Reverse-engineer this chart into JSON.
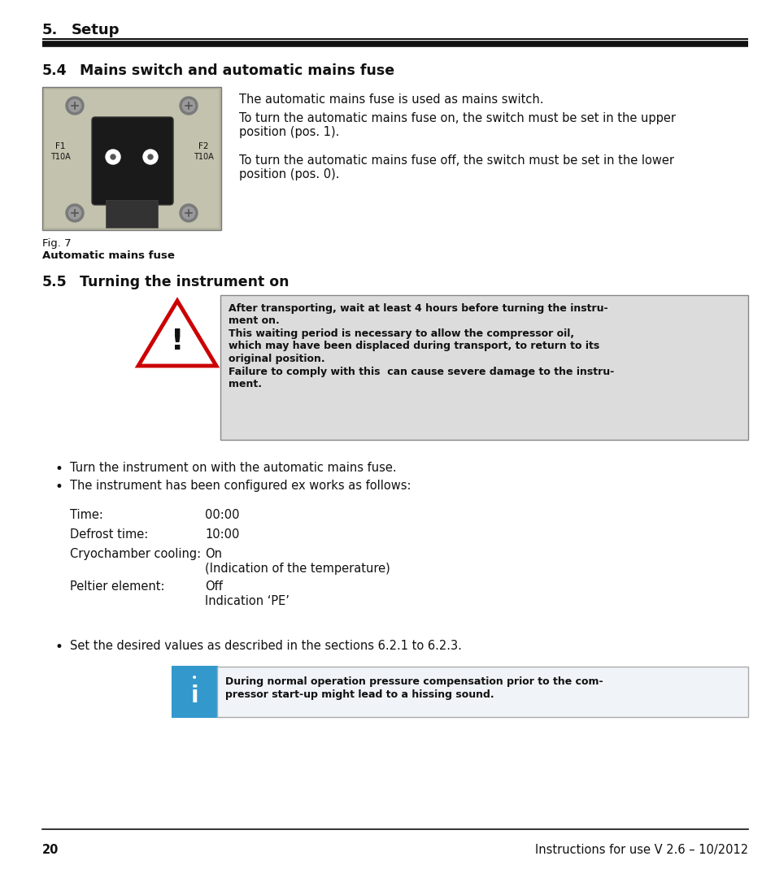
{
  "page_bg": "#ffffff",
  "section_41_num": "5.4",
  "section_41_title": "Mains switch and automatic mains fuse",
  "section_51_num": "5.5",
  "section_51_title": "Turning the instrument on",
  "fig_caption1": "Fig. 7",
  "fig_caption2": "Automatic mains fuse",
  "para1": "The automatic mains fuse is used as mains switch.",
  "para2_l1": "To turn the automatic mains fuse on, the switch must be set in the upper",
  "para2_l2": "position (pos. 1).",
  "para3_l1": "To turn the automatic mains fuse off, the switch must be set in the lower",
  "para3_l2": "position (pos. 0).",
  "warn_l1": "After transporting, wait at least 4 hours before turning the instru-",
  "warn_l2": "ment on.",
  "warn_l3": "This waiting period is necessary to allow the compressor oil,",
  "warn_l4": "which may have been displaced during transport, to return to its",
  "warn_l5": "original position.",
  "warn_l6": "Failure to comply with this  can cause severe damage to the instru-",
  "warn_l7": "ment.",
  "bullet1": "Turn the instrument on with the automatic mains fuse.",
  "bullet2": "The instrument has been configured ex works as follows:",
  "tab_l1": "Time:",
  "tab_v1": "00:00",
  "tab_l2": "Defrost time:",
  "tab_v2": "10:00",
  "tab_l3": "Cryochamber cooling:",
  "tab_v3a": "On",
  "tab_v3b": "(Indication of the temperature)",
  "tab_l4": "Peltier element:",
  "tab_v4a": "Off",
  "tab_v4b": "Indication ‘PE’",
  "bullet3": "Set the desired values as described in the sections 6.2.1 to 6.2.3.",
  "info_l1": "During normal operation pressure compensation prior to the com-",
  "info_l2": "pressor start-up might lead to a hissing sound.",
  "footer_page": "20",
  "footer_right": "Instructions for use V 2.6 – 10/2012",
  "header_num": "5.",
  "header_title": "Setup"
}
